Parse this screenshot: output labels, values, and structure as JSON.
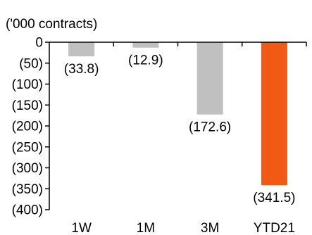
{
  "chart_data": {
    "type": "bar",
    "unit_label": "('000 contracts)",
    "categories": [
      "1W",
      "1M",
      "3M",
      "YTD21"
    ],
    "values": [
      -33.8,
      -12.9,
      -172.6,
      -341.5
    ],
    "data_labels": [
      "(33.8)",
      "(12.9)",
      "(172.6)",
      "(341.5)"
    ],
    "ylim": [
      -400,
      0
    ],
    "yticks": [
      0,
      -50,
      -100,
      -150,
      -200,
      -250,
      -300,
      -350,
      -400
    ],
    "ytick_labels": [
      "0",
      "(50)",
      "(100)",
      "(150)",
      "(200)",
      "(250)",
      "(300)",
      "(350)",
      "(400)"
    ],
    "grid": false,
    "legend": "none",
    "colors": [
      "#c0c0c0",
      "#c0c0c0",
      "#c0c0c0",
      "#f05a14"
    ],
    "axis_color": "#000000"
  }
}
